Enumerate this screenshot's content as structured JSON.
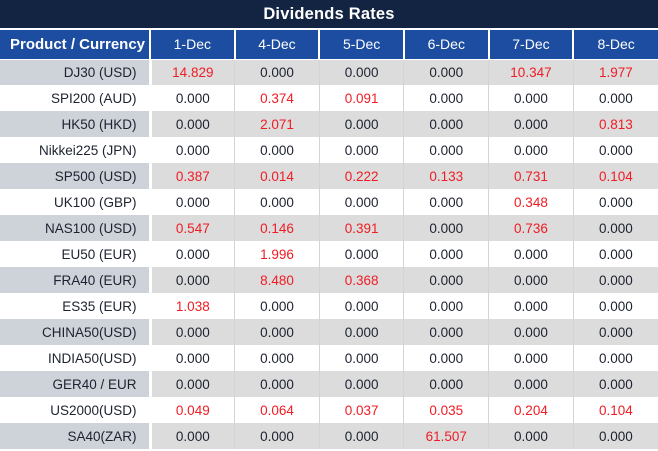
{
  "title": "Dividends Rates",
  "colors": {
    "title_bar_bg": "#122441",
    "header_bg": "#1c4da0",
    "header_text": "#ffffff",
    "row_gray_bg": "#dcdcdc",
    "product_gray_bg": "#ced2d9",
    "row_white_bg": "#ffffff",
    "value_text": "#1d2230",
    "nonzero_value_text": "#ef1c24"
  },
  "table": {
    "product_header": "Product / Currency",
    "date_headers": [
      "1-Dec",
      "4-Dec",
      "5-Dec",
      "6-Dec",
      "7-Dec",
      "8-Dec"
    ],
    "rows": [
      {
        "product": "DJ30 (USD)",
        "values": [
          "14.829",
          "0.000",
          "0.000",
          "0.000",
          "10.347",
          "1.977"
        ]
      },
      {
        "product": "SPI200 (AUD)",
        "values": [
          "0.000",
          "0.374",
          "0.091",
          "0.000",
          "0.000",
          "0.000"
        ]
      },
      {
        "product": "HK50 (HKD)",
        "values": [
          "0.000",
          "2.071",
          "0.000",
          "0.000",
          "0.000",
          "0.813"
        ]
      },
      {
        "product": "Nikkei225 (JPN)",
        "values": [
          "0.000",
          "0.000",
          "0.000",
          "0.000",
          "0.000",
          "0.000"
        ]
      },
      {
        "product": "SP500 (USD)",
        "values": [
          "0.387",
          "0.014",
          "0.222",
          "0.133",
          "0.731",
          "0.104"
        ]
      },
      {
        "product": "UK100 (GBP)",
        "values": [
          "0.000",
          "0.000",
          "0.000",
          "0.000",
          "0.348",
          "0.000"
        ]
      },
      {
        "product": "NAS100 (USD)",
        "values": [
          "0.547",
          "0.146",
          "0.391",
          "0.000",
          "0.736",
          "0.000"
        ]
      },
      {
        "product": "EU50 (EUR)",
        "values": [
          "0.000",
          "1.996",
          "0.000",
          "0.000",
          "0.000",
          "0.000"
        ]
      },
      {
        "product": "FRA40 (EUR)",
        "values": [
          "0.000",
          "8.480",
          "0.368",
          "0.000",
          "0.000",
          "0.000"
        ]
      },
      {
        "product": "ES35 (EUR)",
        "values": [
          "1.038",
          "0.000",
          "0.000",
          "0.000",
          "0.000",
          "0.000"
        ]
      },
      {
        "product": "CHINA50(USD)",
        "values": [
          "0.000",
          "0.000",
          "0.000",
          "0.000",
          "0.000",
          "0.000"
        ]
      },
      {
        "product": "INDIA50(USD)",
        "values": [
          "0.000",
          "0.000",
          "0.000",
          "0.000",
          "0.000",
          "0.000"
        ]
      },
      {
        "product": "GER40 / EUR",
        "values": [
          "0.000",
          "0.000",
          "0.000",
          "0.000",
          "0.000",
          "0.000"
        ]
      },
      {
        "product": "US2000(USD)",
        "values": [
          "0.049",
          "0.064",
          "0.037",
          "0.035",
          "0.204",
          "0.104"
        ]
      },
      {
        "product": "SA40(ZAR)",
        "values": [
          "0.000",
          "0.000",
          "0.000",
          "61.507",
          "0.000",
          "0.000"
        ]
      }
    ]
  }
}
